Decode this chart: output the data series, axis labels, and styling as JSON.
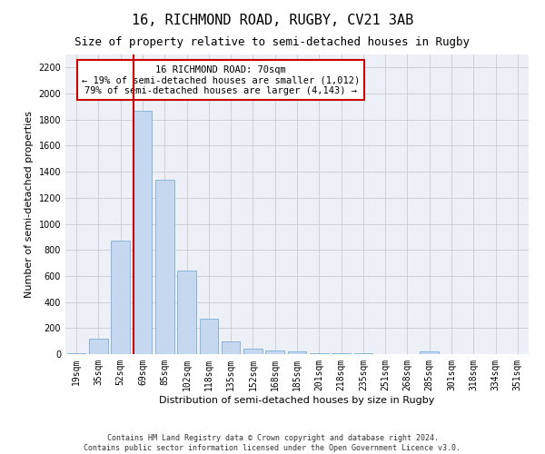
{
  "title": "16, RICHMOND ROAD, RUGBY, CV21 3AB",
  "subtitle": "Size of property relative to semi-detached houses in Rugby",
  "xlabel": "Distribution of semi-detached houses by size in Rugby",
  "ylabel": "Number of semi-detached properties",
  "categories": [
    "19sqm",
    "35sqm",
    "52sqm",
    "69sqm",
    "85sqm",
    "102sqm",
    "118sqm",
    "135sqm",
    "152sqm",
    "168sqm",
    "185sqm",
    "201sqm",
    "218sqm",
    "235sqm",
    "251sqm",
    "268sqm",
    "285sqm",
    "301sqm",
    "318sqm",
    "334sqm",
    "351sqm"
  ],
  "values": [
    10,
    120,
    870,
    1870,
    1340,
    640,
    270,
    100,
    40,
    30,
    20,
    10,
    10,
    5,
    0,
    0,
    20,
    0,
    0,
    0,
    0
  ],
  "bar_color": "#c5d8f0",
  "bar_edge_color": "#7bafd4",
  "highlight_line_color": "#cc0000",
  "highlight_bar_index": 3,
  "annotation_line1": "16 RICHMOND ROAD: 70sqm",
  "annotation_line2": "← 19% of semi-detached houses are smaller (1,012)",
  "annotation_line3": "79% of semi-detached houses are larger (4,143) →",
  "annotation_box_color": "#ffffff",
  "annotation_box_edge_color": "#cc0000",
  "ylim": [
    0,
    2300
  ],
  "yticks": [
    0,
    200,
    400,
    600,
    800,
    1000,
    1200,
    1400,
    1600,
    1800,
    2000,
    2200
  ],
  "grid_color": "#cccccc",
  "bg_color": "#eef0f8",
  "footer1": "Contains HM Land Registry data © Crown copyright and database right 2024.",
  "footer2": "Contains public sector information licensed under the Open Government Licence v3.0.",
  "title_fontsize": 11,
  "subtitle_fontsize": 9,
  "xlabel_fontsize": 8,
  "ylabel_fontsize": 8,
  "tick_fontsize": 7,
  "annotation_fontsize": 7.5,
  "footer_fontsize": 6
}
